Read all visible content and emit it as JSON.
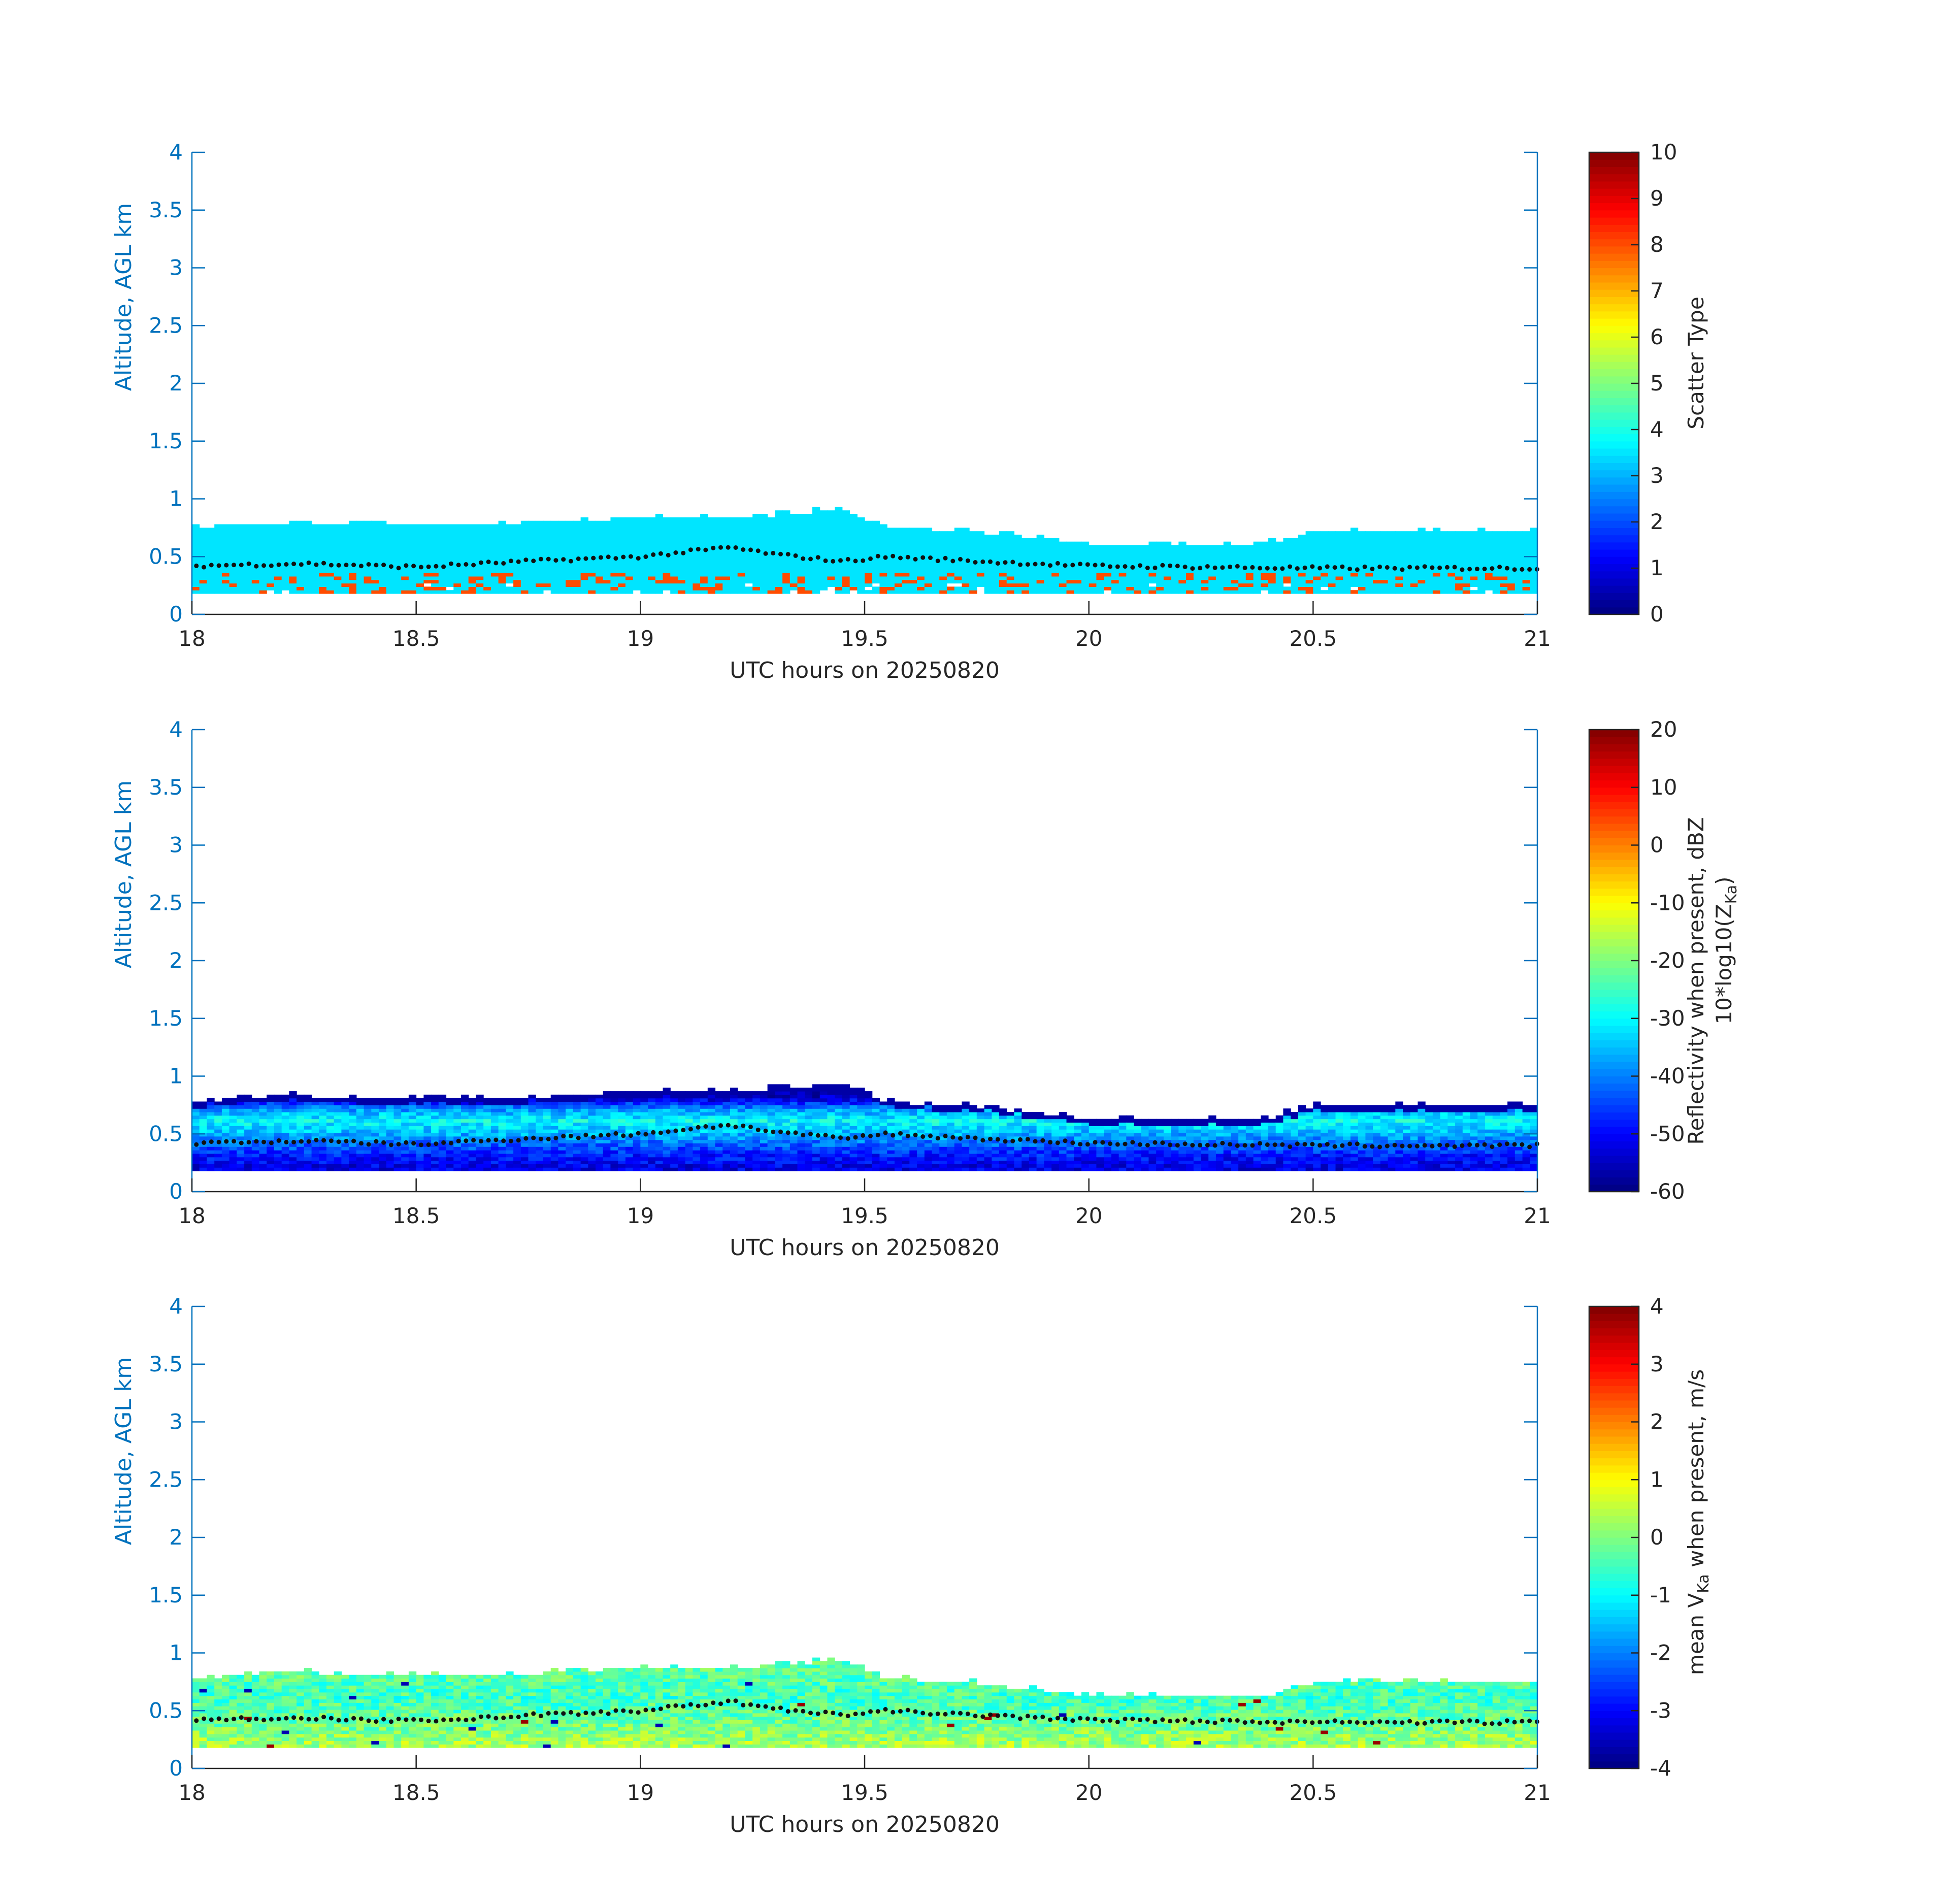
{
  "figure": {
    "background": "#ffffff",
    "axis_left_color": "#0072bd",
    "axis_bottom_color": "#262626"
  },
  "chart_data": [
    {
      "type": "heatmap",
      "xlabel": "UTC hours on 20250820",
      "ylabel": "Altitude, AGL km",
      "xlim": [
        18,
        21
      ],
      "ylim": [
        0,
        4
      ],
      "xticks": [
        "18",
        "18.5",
        "19",
        "19.5",
        "20",
        "20.5",
        "21"
      ],
      "yticks": [
        "0",
        "0.5",
        "1",
        "1.5",
        "2",
        "2.5",
        "3",
        "3.5",
        "4"
      ],
      "colorbar": {
        "label": "Scatter Type",
        "range": [
          0,
          10
        ],
        "ticks": [
          "0",
          "1",
          "2",
          "3",
          "4",
          "5",
          "6",
          "7",
          "8",
          "9",
          "10"
        ],
        "colormap": "jet"
      },
      "field": "scatter_type",
      "description_values": {
        "cloud_value": 3.5,
        "precip_value": 8.0
      },
      "layer": {
        "base_km": 0.18,
        "top_km_profile": [
          [
            18.0,
            0.74
          ],
          [
            18.2,
            0.78
          ],
          [
            18.5,
            0.76
          ],
          [
            18.75,
            0.78
          ],
          [
            19.0,
            0.82
          ],
          [
            19.25,
            0.82
          ],
          [
            19.45,
            0.9
          ],
          [
            19.55,
            0.74
          ],
          [
            19.75,
            0.7
          ],
          [
            19.9,
            0.64
          ],
          [
            20.0,
            0.6
          ],
          [
            20.4,
            0.6
          ],
          [
            20.5,
            0.7
          ],
          [
            21.0,
            0.72
          ]
        ]
      },
      "mean_altitude_km": [
        [
          18.0,
          0.42
        ],
        [
          18.25,
          0.44
        ],
        [
          18.5,
          0.41
        ],
        [
          18.75,
          0.46
        ],
        [
          19.0,
          0.5
        ],
        [
          19.2,
          0.58
        ],
        [
          19.3,
          0.52
        ],
        [
          19.45,
          0.46
        ],
        [
          19.55,
          0.5
        ],
        [
          19.75,
          0.46
        ],
        [
          20.0,
          0.42
        ],
        [
          20.5,
          0.4
        ],
        [
          21.0,
          0.4
        ]
      ]
    },
    {
      "type": "heatmap",
      "xlabel": "UTC hours on 20250820",
      "ylabel": "Altitude, AGL km",
      "xlim": [
        18,
        21
      ],
      "ylim": [
        0,
        4
      ],
      "xticks": [
        "18",
        "18.5",
        "19",
        "19.5",
        "20",
        "20.5",
        "21"
      ],
      "yticks": [
        "0",
        "0.5",
        "1",
        "1.5",
        "2",
        "2.5",
        "3",
        "3.5",
        "4"
      ],
      "colorbar": {
        "label_line1": "Reflectivity when present, dBZ",
        "label_line2_main": "10*log10(Z",
        "label_line2_sub": "Ka",
        "label_line2_end": ")",
        "range": [
          -60,
          20
        ],
        "ticks": [
          "-60",
          "-50",
          "-40",
          "-30",
          "-20",
          "-10",
          "0",
          "10",
          "20"
        ],
        "colormap": "jet"
      },
      "field": "reflectivity_dbz",
      "value_profile": [
        [
          0.2,
          -52
        ],
        [
          0.3,
          -48
        ],
        [
          0.4,
          -42
        ],
        [
          0.5,
          -35
        ],
        [
          0.6,
          -30
        ],
        [
          0.7,
          -38
        ],
        [
          0.8,
          -55
        ]
      ],
      "layer": {
        "base_km": 0.18,
        "top_km_profile": [
          [
            18.0,
            0.76
          ],
          [
            18.2,
            0.82
          ],
          [
            18.5,
            0.78
          ],
          [
            18.75,
            0.8
          ],
          [
            19.0,
            0.86
          ],
          [
            19.25,
            0.86
          ],
          [
            19.45,
            0.92
          ],
          [
            19.55,
            0.76
          ],
          [
            19.75,
            0.72
          ],
          [
            19.9,
            0.66
          ],
          [
            20.0,
            0.62
          ],
          [
            20.4,
            0.62
          ],
          [
            20.5,
            0.72
          ],
          [
            21.0,
            0.74
          ]
        ]
      },
      "mean_altitude_km": [
        [
          18.0,
          0.42
        ],
        [
          18.25,
          0.44
        ],
        [
          18.5,
          0.41
        ],
        [
          18.75,
          0.46
        ],
        [
          19.0,
          0.5
        ],
        [
          19.2,
          0.58
        ],
        [
          19.3,
          0.52
        ],
        [
          19.45,
          0.46
        ],
        [
          19.55,
          0.5
        ],
        [
          19.75,
          0.46
        ],
        [
          20.0,
          0.42
        ],
        [
          20.5,
          0.4
        ],
        [
          21.0,
          0.4
        ]
      ]
    },
    {
      "type": "heatmap",
      "xlabel": "UTC hours on 20250820",
      "ylabel": "Altitude, AGL km",
      "xlim": [
        18,
        21
      ],
      "ylim": [
        0,
        4
      ],
      "xticks": [
        "18",
        "18.5",
        "19",
        "19.5",
        "20",
        "20.5",
        "21"
      ],
      "yticks": [
        "0",
        "0.5",
        "1",
        "1.5",
        "2",
        "2.5",
        "3",
        "3.5",
        "4"
      ],
      "colorbar": {
        "label_main": "mean V",
        "label_sub": "Ka",
        "label_end": " when present, m/s",
        "range": [
          -4,
          4
        ],
        "ticks": [
          "-4",
          "-3",
          "-2",
          "-1",
          "0",
          "1",
          "2",
          "3",
          "4"
        ],
        "colormap": "jet"
      },
      "field": "mean_velocity_ms",
      "value_profile": [
        [
          0.2,
          0.3
        ],
        [
          0.4,
          -0.2
        ],
        [
          0.6,
          -0.5
        ],
        [
          0.8,
          -0.3
        ]
      ],
      "layer": {
        "base_km": 0.18,
        "top_km_profile": [
          [
            18.0,
            0.76
          ],
          [
            18.2,
            0.82
          ],
          [
            18.5,
            0.78
          ],
          [
            18.75,
            0.8
          ],
          [
            19.0,
            0.86
          ],
          [
            19.25,
            0.86
          ],
          [
            19.45,
            0.92
          ],
          [
            19.55,
            0.76
          ],
          [
            19.75,
            0.72
          ],
          [
            19.9,
            0.66
          ],
          [
            20.0,
            0.62
          ],
          [
            20.4,
            0.62
          ],
          [
            20.5,
            0.72
          ],
          [
            21.0,
            0.74
          ]
        ]
      },
      "mean_altitude_km": [
        [
          18.0,
          0.42
        ],
        [
          18.25,
          0.44
        ],
        [
          18.5,
          0.41
        ],
        [
          18.75,
          0.46
        ],
        [
          19.0,
          0.5
        ],
        [
          19.2,
          0.58
        ],
        [
          19.3,
          0.52
        ],
        [
          19.45,
          0.46
        ],
        [
          19.55,
          0.5
        ],
        [
          19.75,
          0.46
        ],
        [
          20.0,
          0.42
        ],
        [
          20.5,
          0.4
        ],
        [
          21.0,
          0.4
        ]
      ]
    }
  ]
}
